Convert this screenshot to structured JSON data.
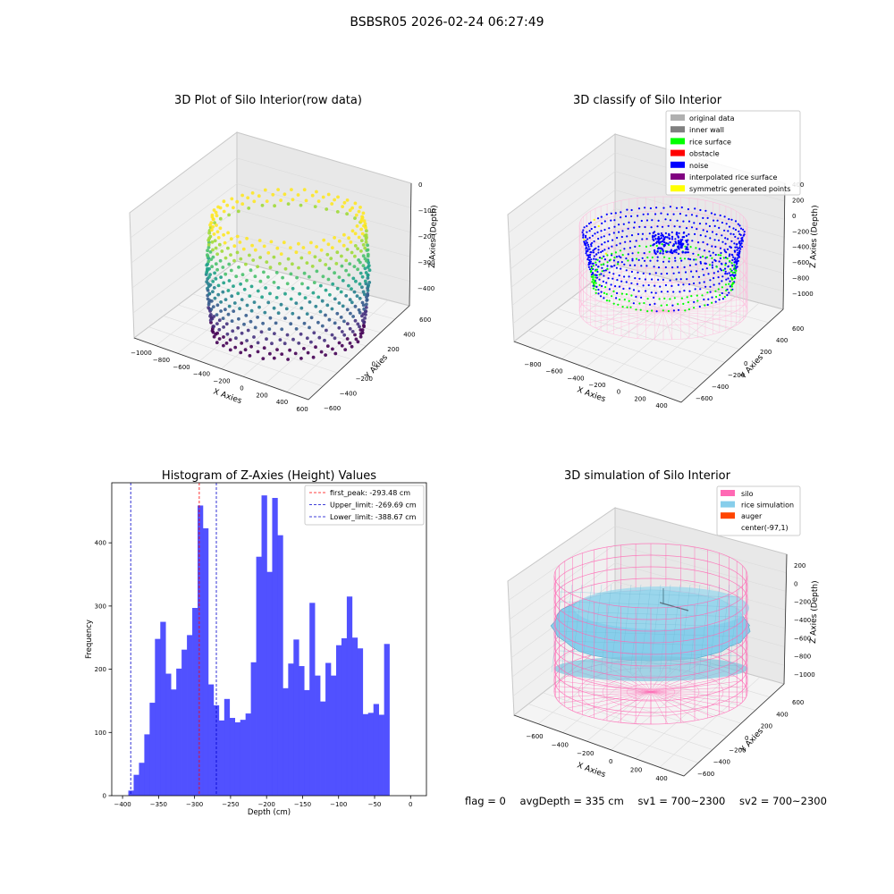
{
  "figure": {
    "title": "BSBSR05 2026-02-24 06:27:49",
    "footer": {
      "flag": "flag = 0",
      "avg_depth": "avgDepth = 335 cm",
      "sv1": "sv1 = 700~2300",
      "sv2": "sv2 = 700~2300"
    }
  },
  "colors": {
    "histogram_bar": "#4b4bff",
    "first_peak_line": "#ff0000",
    "limit_line": "#0000cc",
    "silo_wire": "#ff69b4",
    "rice_simulation": "#87ceeb",
    "auger": "#ff4500",
    "noise": "#0000ff",
    "rice_surface": "#00ff00",
    "obstacle": "#ff0000",
    "interpolated_rice_surface": "#800080",
    "symmetric_points": "#ffff00",
    "original_data": "#b0b0b0",
    "inner_wall": "#808080"
  },
  "chart_data": [
    {
      "type": "scatter3d",
      "title": "3D Plot of Silo Interior(row data)",
      "xlabel": "X Axies",
      "ylabel": "Y Axies",
      "zlabel": "Z Axies (Depth)",
      "x_ticks": [
        "−1000",
        "−800",
        "−600",
        "−400",
        "−200",
        "0",
        "200",
        "400",
        "600"
      ],
      "y_ticks": [
        "−600",
        "−400",
        "−200",
        "0",
        "200",
        "400",
        "600"
      ],
      "z_ticks": [
        "0",
        "−100",
        "−200",
        "−300",
        "−400"
      ],
      "colormap": "viridis"
    },
    {
      "type": "scatter3d",
      "title": "3D classify of Silo Interior",
      "xlabel": "X Axies",
      "ylabel": "Y Axies",
      "zlabel": "Z Axies (Depth)",
      "x_ticks": [
        "−800",
        "−600",
        "−400",
        "−200",
        "0",
        "200",
        "400"
      ],
      "y_ticks": [
        "−600",
        "−400",
        "−200",
        "0",
        "200",
        "400",
        "600"
      ],
      "z_ticks": [
        "400",
        "200",
        "0",
        "−200",
        "−400",
        "−600",
        "−800",
        "−1000"
      ],
      "legend": [
        {
          "label": "original data",
          "color": "#b0b0b0"
        },
        {
          "label": "inner wall",
          "color": "#808080"
        },
        {
          "label": "rice surface",
          "color": "#00ff00"
        },
        {
          "label": "obstacle",
          "color": "#ff0000"
        },
        {
          "label": "noise",
          "color": "#0000ff"
        },
        {
          "label": "interpolated rice surface",
          "color": "#800080"
        },
        {
          "label": "symmetric generated points",
          "color": "#ffff00"
        }
      ],
      "legend_position": "top-right"
    },
    {
      "type": "bar",
      "subtype": "histogram",
      "title": "Histogram of Z-Axies (Height) Values",
      "xlabel": "Depth (cm)",
      "ylabel": "Frequency",
      "xlim": [
        -415,
        22
      ],
      "ylim": [
        0,
        495
      ],
      "bin_width": 7.4,
      "bin_start": -392,
      "values": [
        8,
        33,
        52,
        97,
        147,
        248,
        275,
        193,
        168,
        201,
        231,
        254,
        297,
        459,
        423,
        176,
        143,
        119,
        153,
        123,
        116,
        120,
        130,
        211,
        378,
        475,
        354,
        471,
        412,
        170,
        209,
        247,
        205,
        167,
        305,
        190,
        149,
        210,
        190,
        238,
        249,
        315,
        250,
        233,
        129,
        131,
        145,
        128,
        240
      ],
      "x_ticks": [
        -400,
        -350,
        -300,
        -250,
        -200,
        -150,
        -100,
        -50,
        0
      ],
      "y_ticks": [
        0,
        100,
        200,
        300,
        400
      ],
      "vlines": [
        {
          "label": "first_peak: -293.48 cm",
          "x": -293.48,
          "color": "#ff0000"
        },
        {
          "label": "Upper_limit: -269.69 cm",
          "x": -269.69,
          "color": "#0000cc"
        },
        {
          "label": "Lower_limit: -388.67 cm",
          "x": -388.67,
          "color": "#0000cc"
        }
      ],
      "legend_position": "top-right"
    },
    {
      "type": "surface3d",
      "title": "3D simulation of Silo Interior",
      "xlabel": "X Axies",
      "ylabel": "Y Axies",
      "zlabel": "Z Axies (Depth)",
      "x_ticks": [
        "−600",
        "−400",
        "−200",
        "0",
        "200",
        "400"
      ],
      "y_ticks": [
        "−600",
        "−400",
        "−200",
        "0",
        "200",
        "400",
        "600"
      ],
      "z_ticks": [
        "200",
        "0",
        "−200",
        "−400",
        "−600",
        "−800",
        "−1000"
      ],
      "legend": [
        {
          "label": "silo",
          "color": "#ff69b4"
        },
        {
          "label": "rice simulation",
          "color": "#87ceeb"
        },
        {
          "label": "auger",
          "color": "#ff4500"
        },
        {
          "label": "center(-97,1)",
          "color": "none"
        }
      ],
      "legend_position": "top-right"
    }
  ]
}
